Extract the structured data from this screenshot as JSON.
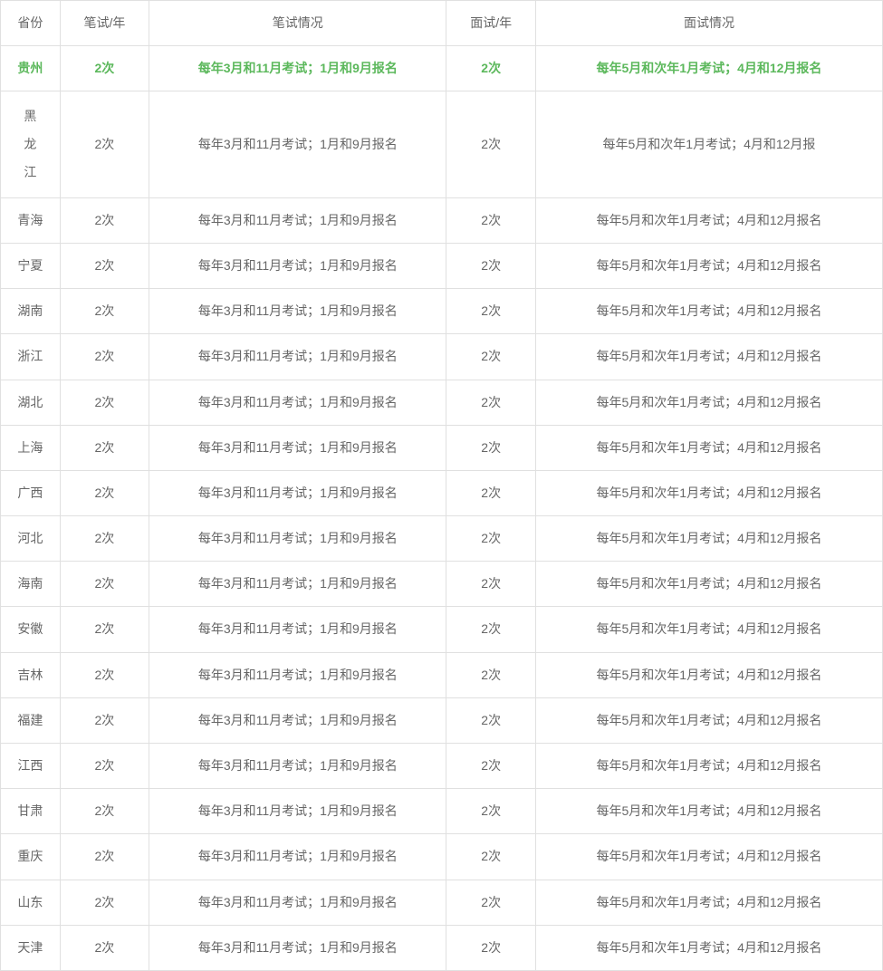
{
  "table": {
    "columns": [
      {
        "key": "province",
        "label": "省份",
        "class": "col-province"
      },
      {
        "key": "written_count",
        "label": "笔试/年",
        "class": "col-count"
      },
      {
        "key": "written_detail",
        "label": "笔试情况",
        "class": "col-detail"
      },
      {
        "key": "interview_count",
        "label": "面试/年",
        "class": "col-count"
      },
      {
        "key": "interview_detail",
        "label": "面试情况",
        "class": "col-interview-detail"
      }
    ],
    "rows": [
      {
        "province": "贵州",
        "written_count": "2次",
        "written_detail": "每年3月和11月考试；1月和9月报名",
        "interview_count": "2次",
        "interview_detail": "每年5月和次年1月考试；4月和12月报名",
        "highlight": true
      },
      {
        "province": "黑龙江",
        "written_count": "2次",
        "written_detail": "每年3月和11月考试；1月和9月报名",
        "interview_count": "2次",
        "interview_detail": "每年5月和次年1月考试；4月和12月报",
        "vertical": true
      },
      {
        "province": "青海",
        "written_count": "2次",
        "written_detail": "每年3月和11月考试；1月和9月报名",
        "interview_count": "2次",
        "interview_detail": "每年5月和次年1月考试；4月和12月报名"
      },
      {
        "province": "宁夏",
        "written_count": "2次",
        "written_detail": "每年3月和11月考试；1月和9月报名",
        "interview_count": "2次",
        "interview_detail": "每年5月和次年1月考试；4月和12月报名"
      },
      {
        "province": "湖南",
        "written_count": "2次",
        "written_detail": "每年3月和11月考试；1月和9月报名",
        "interview_count": "2次",
        "interview_detail": "每年5月和次年1月考试；4月和12月报名"
      },
      {
        "province": "浙江",
        "written_count": "2次",
        "written_detail": "每年3月和11月考试；1月和9月报名",
        "interview_count": "2次",
        "interview_detail": "每年5月和次年1月考试；4月和12月报名"
      },
      {
        "province": "湖北",
        "written_count": "2次",
        "written_detail": "每年3月和11月考试；1月和9月报名",
        "interview_count": "2次",
        "interview_detail": "每年5月和次年1月考试；4月和12月报名"
      },
      {
        "province": "上海",
        "written_count": "2次",
        "written_detail": "每年3月和11月考试；1月和9月报名",
        "interview_count": "2次",
        "interview_detail": "每年5月和次年1月考试；4月和12月报名"
      },
      {
        "province": "广西",
        "written_count": "2次",
        "written_detail": "每年3月和11月考试；1月和9月报名",
        "interview_count": "2次",
        "interview_detail": "每年5月和次年1月考试；4月和12月报名"
      },
      {
        "province": "河北",
        "written_count": "2次",
        "written_detail": "每年3月和11月考试；1月和9月报名",
        "interview_count": "2次",
        "interview_detail": "每年5月和次年1月考试；4月和12月报名"
      },
      {
        "province": "海南",
        "written_count": "2次",
        "written_detail": "每年3月和11月考试；1月和9月报名",
        "interview_count": "2次",
        "interview_detail": "每年5月和次年1月考试；4月和12月报名"
      },
      {
        "province": "安徽",
        "written_count": "2次",
        "written_detail": "每年3月和11月考试；1月和9月报名",
        "interview_count": "2次",
        "interview_detail": "每年5月和次年1月考试；4月和12月报名"
      },
      {
        "province": "吉林",
        "written_count": "2次",
        "written_detail": "每年3月和11月考试；1月和9月报名",
        "interview_count": "2次",
        "interview_detail": "每年5月和次年1月考试；4月和12月报名"
      },
      {
        "province": "福建",
        "written_count": "2次",
        "written_detail": "每年3月和11月考试；1月和9月报名",
        "interview_count": "2次",
        "interview_detail": "每年5月和次年1月考试；4月和12月报名"
      },
      {
        "province": "江西",
        "written_count": "2次",
        "written_detail": "每年3月和11月考试；1月和9月报名",
        "interview_count": "2次",
        "interview_detail": "每年5月和次年1月考试；4月和12月报名"
      },
      {
        "province": "甘肃",
        "written_count": "2次",
        "written_detail": "每年3月和11月考试；1月和9月报名",
        "interview_count": "2次",
        "interview_detail": "每年5月和次年1月考试；4月和12月报名"
      },
      {
        "province": "重庆",
        "written_count": "2次",
        "written_detail": "每年3月和11月考试；1月和9月报名",
        "interview_count": "2次",
        "interview_detail": "每年5月和次年1月考试；4月和12月报名"
      },
      {
        "province": "山东",
        "written_count": "2次",
        "written_detail": "每年3月和11月考试；1月和9月报名",
        "interview_count": "2次",
        "interview_detail": "每年5月和次年1月考试；4月和12月报名"
      },
      {
        "province": "天津",
        "written_count": "2次",
        "written_detail": "每年3月和11月考试；1月和9月报名",
        "interview_count": "2次",
        "interview_detail": "每年5月和次年1月考试；4月和12月报名"
      }
    ],
    "styling": {
      "border_color": "#e0e0e0",
      "text_color": "#666666",
      "highlight_color": "#5cb85c",
      "background_color": "#ffffff",
      "font_size": 14,
      "cell_padding": "12px 8px"
    }
  }
}
